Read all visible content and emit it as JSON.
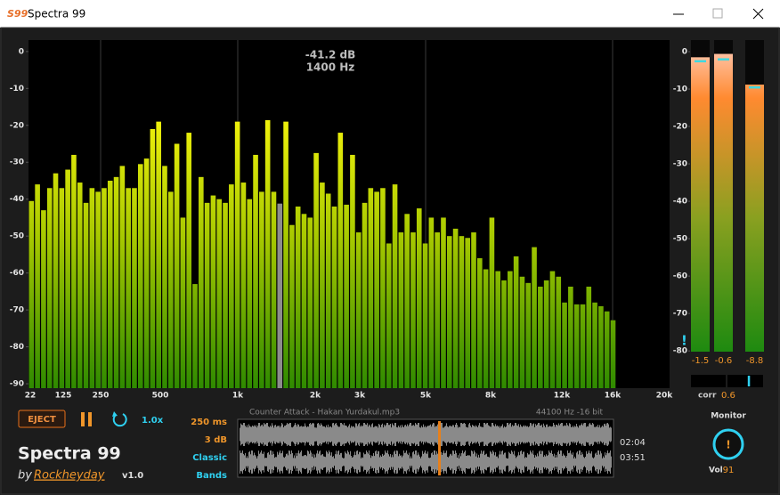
{
  "window": {
    "icon": "S99",
    "title": "Spectra 99"
  },
  "chart_data": [
    {
      "type": "bar",
      "annotation": {
        "level": "-41.2 dB",
        "frequency": "1400 Hz"
      },
      "highlight_index": 41,
      "highlight_color": "#8c8c8c",
      "values": [
        -40.5,
        -36,
        -43,
        -37,
        -33,
        -37,
        -32,
        -28,
        -35.5,
        -41,
        -37,
        -38,
        -37,
        -35,
        -34,
        -31,
        -37,
        -37,
        -30.5,
        -29,
        -21,
        -19,
        -31,
        -38,
        -25,
        -45,
        -22,
        -63,
        -34,
        -41,
        -39,
        -40,
        -41,
        -36,
        -19,
        -35.5,
        -40,
        -28,
        -38,
        -18.6,
        -38,
        -41.2,
        -19,
        -47,
        -42,
        -44,
        -45,
        -27.5,
        -35.5,
        -38.5,
        -42,
        -22,
        -41.5,
        -28,
        -49,
        -41,
        -37,
        -38,
        -37,
        -52,
        -36,
        -49,
        -44,
        -49,
        -42.5,
        -52,
        -45,
        -49,
        -45,
        -50,
        -48,
        -50,
        -50.5,
        -49,
        -56,
        -59,
        -45,
        -59.5,
        -62,
        -59.5,
        -55.5,
        -61,
        -62.7,
        -53,
        -63.7,
        -62,
        -59.5,
        -61,
        -68,
        -63.7,
        -68.5,
        -68.5,
        -63.7,
        -68,
        -69,
        -70.4,
        -72.8
      ],
      "ylim": [
        -91.2,
        3.1
      ],
      "yticks": [
        0,
        -10,
        -20,
        -30,
        -40,
        -50,
        -60,
        -70,
        -80,
        -90
      ],
      "xticks": [
        22,
        125,
        250,
        500,
        {
          "value": 1000,
          "label": "1k"
        },
        {
          "value": 2000,
          "label": "2k"
        },
        {
          "value": 3000,
          "label": "3k"
        },
        {
          "value": 5000,
          "label": "5k"
        },
        {
          "value": 8000,
          "label": "8k"
        },
        {
          "value": 12000,
          "label": "12k"
        },
        {
          "value": 16000,
          "label": "16k"
        },
        {
          "value": 20000,
          "label": "20k"
        }
      ],
      "grid": true
    },
    {
      "type": "meter",
      "values": [
        -1.5,
        -0.6,
        -8.8
      ],
      "value_labels": [
        "-1.5",
        "-0.6",
        "-8.8"
      ],
      "peaks": [
        -2.5,
        -2,
        -9.5
      ],
      "ylim": [
        -80.2,
        3.1
      ],
      "yticks": [
        0,
        -10,
        -20,
        -30,
        -40,
        -50,
        -60,
        -70,
        -80
      ]
    }
  ],
  "alert": "!",
  "correlation": {
    "label": "corr",
    "value": 0.6,
    "xlim": [
      -1,
      1
    ]
  },
  "controls": {
    "eject": "EJECT",
    "speed": "1.0x"
  },
  "settings": [
    "250 ms",
    "3 dB",
    "Classic",
    "Bands"
  ],
  "branding": {
    "name": "Spectra 99",
    "by": "by",
    "author": "Rockheyday",
    "version": "v1.0"
  },
  "track": {
    "file": "Counter Attack - Hakan Yurdakul.mp3",
    "format": "44100 Hz -16 bit",
    "elapsed": "02:04",
    "total": "03:51"
  },
  "monitor": {
    "label": "Monitor",
    "knob": "!",
    "vol_label": "Vol",
    "vol": 91
  }
}
